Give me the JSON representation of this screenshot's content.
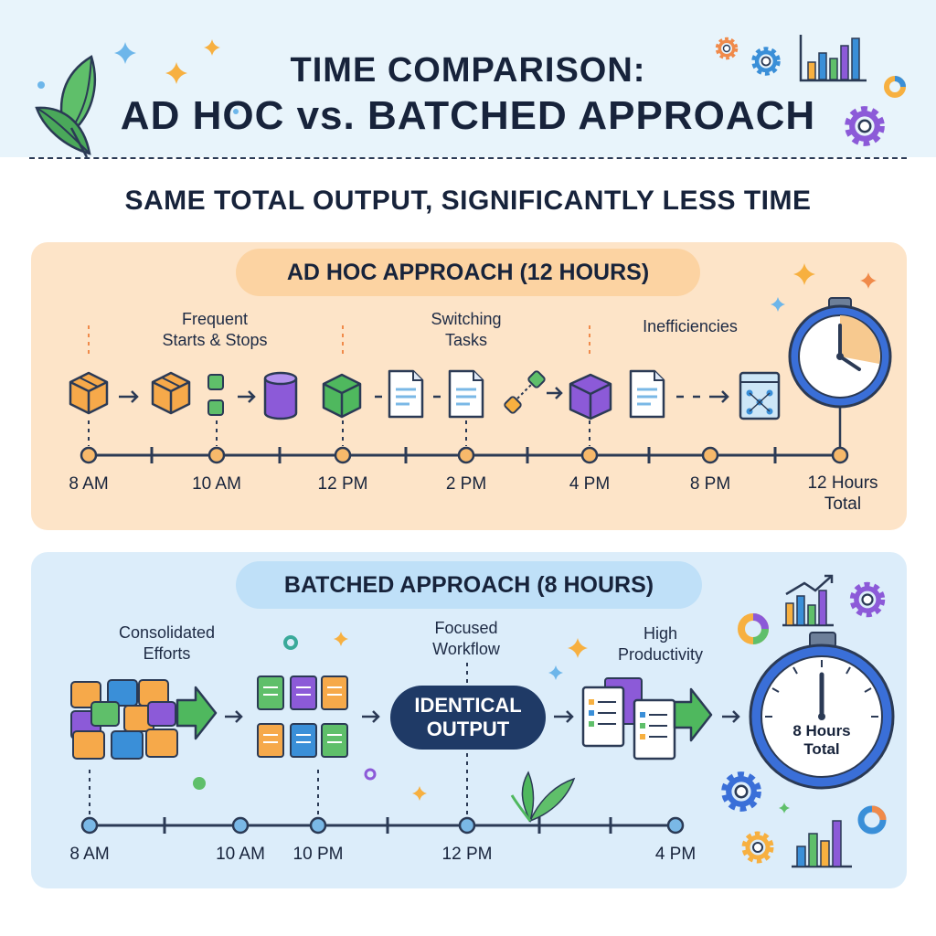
{
  "title": {
    "line1": "TIME COMPARISON:",
    "line2": "AD HOC vs. BATCHED APPROACH"
  },
  "subtitle": "SAME TOTAL OUTPUT, SIGNIFICANTLY LESS TIME",
  "adhoc": {
    "heading": "AD HOC APPROACH (12 HOURS)",
    "notes": [
      {
        "line1": "Frequent",
        "line2": "Starts & Stops"
      },
      {
        "line1": "Switching",
        "line2": "Tasks"
      },
      {
        "line1": "Inefficiencies",
        "line2": ""
      }
    ],
    "times": [
      "8 AM",
      "10 AM",
      "12 PM",
      "2 PM",
      "4 PM",
      "8 PM"
    ],
    "total": {
      "line1": "12 Hours",
      "line2": "Total"
    }
  },
  "batched": {
    "heading": "BATCHED APPROACH (8 HOURS)",
    "notes": [
      {
        "line1": "Consolidated",
        "line2": "Efforts"
      },
      {
        "line1": "Focused",
        "line2": "Workflow"
      },
      {
        "line1": "High",
        "line2": "Productivity"
      }
    ],
    "center_badge": {
      "line1": "IDENTICAL",
      "line2": "OUTPUT"
    },
    "times": [
      "8 AM",
      "10 AM",
      "10 PM",
      "12 PM",
      "4 PM"
    ],
    "clock_label": {
      "line1": "8 Hours",
      "line2": "Total"
    }
  },
  "colors": {
    "header_bg": "#e8f4fb",
    "adhoc_panel": "#fde4c8",
    "adhoc_pill": "#fcd3a2",
    "batched_panel": "#dcedfa",
    "batched_pill": "#bfe0f8",
    "timeline": "#2b3a55",
    "adhoc_dot": "#f7b96b",
    "batched_dot": "#7ab8e6",
    "clock_ring": "#3a6fd8",
    "badge": "#1f3a66"
  },
  "icons": [
    "leaf-icon",
    "sparkle-icon",
    "gear-icon",
    "bar-chart-icon",
    "box-icon",
    "database-icon",
    "document-icon",
    "network-icon",
    "clock-icon",
    "arrow-icon",
    "donut-chart-icon",
    "sprout-icon"
  ]
}
